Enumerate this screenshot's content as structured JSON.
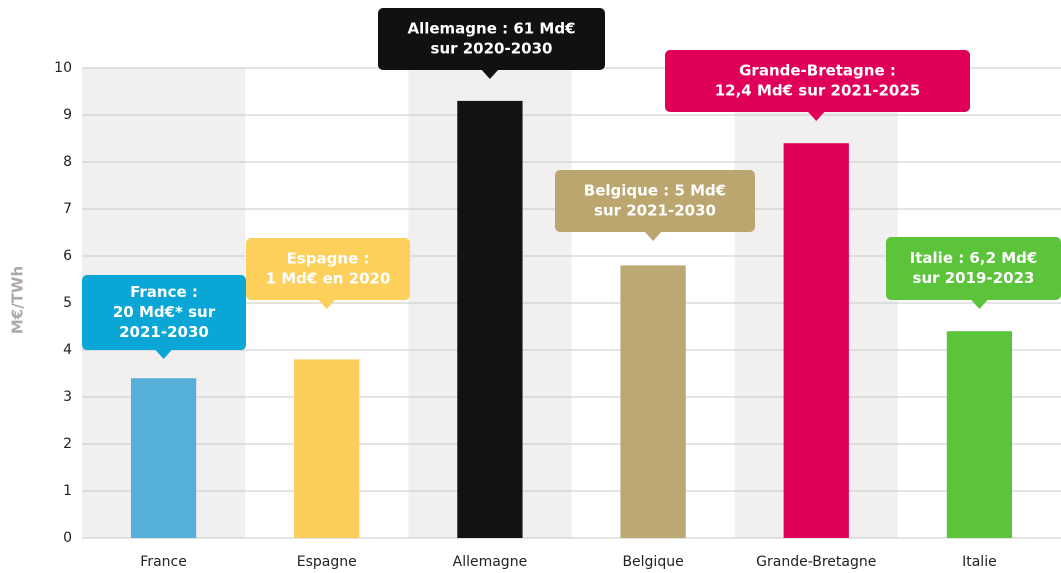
{
  "chart_data": {
    "type": "bar",
    "y_label": "M€/TWh",
    "categories": [
      "France",
      "Espagne",
      "Allemagne",
      "Belgique",
      "Grande-Bretagne",
      "Italie"
    ],
    "values": [
      3.4,
      3.8,
      9.3,
      5.8,
      8.4,
      4.4
    ],
    "colors": [
      "#56afd9",
      "#fbcd5a",
      "#121212",
      "#bca872",
      "#e0005a",
      "#5bc43a"
    ],
    "annotations": [
      {
        "lines": [
          "France :",
          "20 Md€* sur",
          "2021-2030"
        ],
        "color": "#0aa7d6"
      },
      {
        "lines": [
          "Espagne :",
          "1 Md€ en 2020"
        ],
        "color": "#fcd05a"
      },
      {
        "lines": [
          "Allemagne : 61 Md€",
          "sur 2020-2030"
        ],
        "color": "#111111"
      },
      {
        "lines": [
          "Belgique : 5 Md€",
          "sur 2021-2030"
        ],
        "color": "#bba66f"
      },
      {
        "lines": [
          "Grande-Bretagne :",
          "12,4 Md€ sur 2021-2025"
        ],
        "color": "#e0005a"
      },
      {
        "lines": [
          "Italie : 6,2 Md€",
          "sur 2019-2023"
        ],
        "color": "#5bc43a"
      }
    ],
    "ylim": [
      0,
      10
    ],
    "yticks": [
      0,
      1,
      2,
      3,
      4,
      5,
      6,
      7,
      8,
      9,
      10
    ],
    "grid": true
  }
}
